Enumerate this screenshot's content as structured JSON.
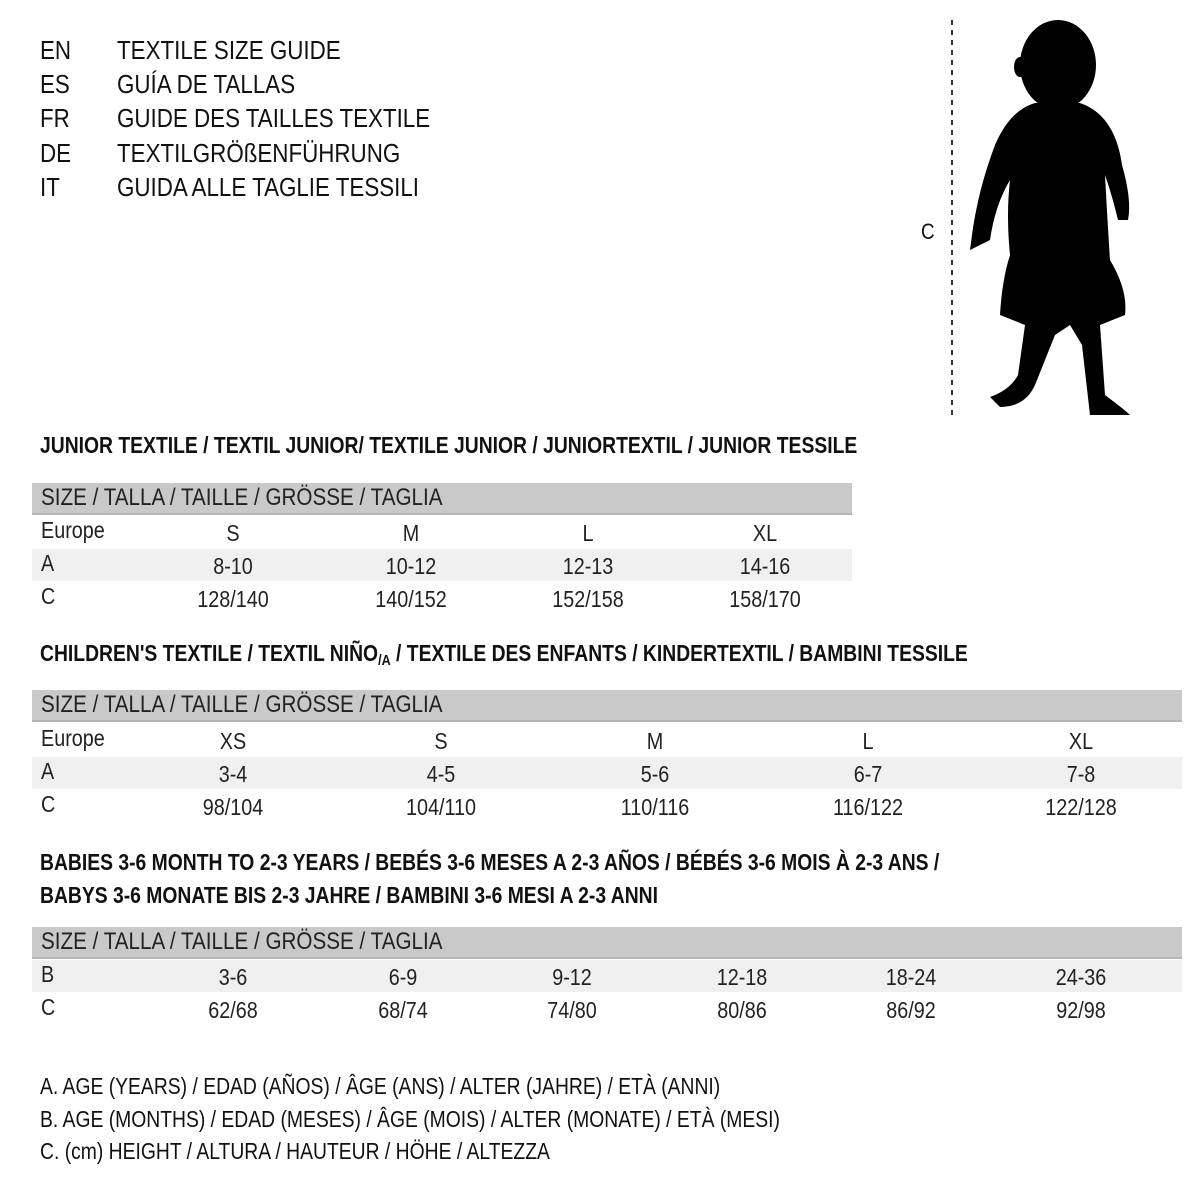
{
  "header": {
    "lines": [
      {
        "code": "EN",
        "text": "TEXTILE SIZE GUIDE"
      },
      {
        "code": "ES",
        "text": "GUÍA DE TALLAS"
      },
      {
        "code": "FR",
        "text": "GUIDE DES TAILLES TEXTILE"
      },
      {
        "code": "DE",
        "text": "TEXTILGRÖßENFÜHRUNG"
      },
      {
        "code": "IT",
        "text": "GUIDA ALLE TAGLIE TESSILI"
      }
    ]
  },
  "figure": {
    "measure_label": "C",
    "icon": "baby-silhouette-icon"
  },
  "junior": {
    "title": "JUNIOR TEXTILE / TEXTIL JUNIOR/ TEXTILE JUNIOR / JUNIORTEXTIL / JUNIOR TESSILE",
    "size_header": "SIZE / TALLA / TAILLE / GRÖSSE / TAGLIA",
    "rows": [
      {
        "label": "Europe",
        "cells": [
          "S",
          "M",
          "L",
          "XL"
        ]
      },
      {
        "label": "A",
        "cells": [
          "8-10",
          "10-12",
          "12-13",
          "14-16"
        ]
      },
      {
        "label": "C",
        "cells": [
          "128/140",
          "140/152",
          "152/158",
          "158/170"
        ]
      }
    ]
  },
  "children": {
    "title_pre": "CHILDREN'S TEXTILE / TEXTIL NIÑO",
    "title_sub": "/A",
    "title_post": " / TEXTILE DES ENFANTS / KINDERTEXTIL / BAMBINI TESSILE",
    "size_header": "SIZE / TALLA / TAILLE / GRÖSSE / TAGLIA",
    "rows": [
      {
        "label": "Europe",
        "cells": [
          "XS",
          "S",
          "M",
          "L",
          "XL"
        ]
      },
      {
        "label": "A",
        "cells": [
          "3-4",
          "4-5",
          "5-6",
          "6-7",
          "7-8"
        ]
      },
      {
        "label": "C",
        "cells": [
          "98/104",
          "104/110",
          "110/116",
          "116/122",
          "122/128"
        ]
      }
    ]
  },
  "babies": {
    "title_line1": "BABIES 3-6 MONTH TO 2-3 YEARS / BEBÉS 3-6 MESES A 2-3 AÑOS / BÉBÉS 3-6 MOIS À 2-3 ANS /",
    "title_line2": "BABYS 3-6 MONATE BIS 2-3 JAHRE / BAMBINI 3-6 MESI A 2-3 ANNI",
    "size_header": "SIZE / TALLA / TAILLE / GRÖSSE / TAGLIA",
    "rows": [
      {
        "label": "B",
        "cells": [
          "3-6",
          "6-9",
          "9-12",
          "12-18",
          "18-24",
          "24-36"
        ]
      },
      {
        "label": "C",
        "cells": [
          "62/68",
          "68/74",
          "74/80",
          "80/86",
          "86/92",
          "92/98"
        ]
      }
    ]
  },
  "legend": [
    "A. AGE (YEARS) / EDAD (AÑOS) / ÂGE (ANS) / ALTER (JAHRE) / ETÀ (ANNI)",
    "B. AGE (MONTHS) / EDAD (MESES) / ÂGE (MOIS) / ALTER (MONATE) / ETÀ (MESI)",
    "C. (cm) HEIGHT / ALTURA / HAUTEUR / HÖHE / ALTEZZA"
  ]
}
